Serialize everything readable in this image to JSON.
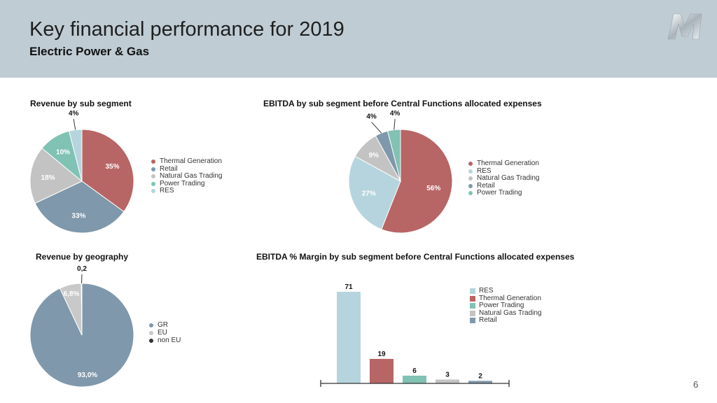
{
  "header": {
    "title": "Key financial performance for 2019",
    "subtitle": "Electric Power & Gas"
  },
  "page_number": "6",
  "colors": {
    "header_bg": "#bfccd4",
    "thermal": "#b86566",
    "retail": "#7f98ab",
    "natural_gas": "#c3c3c3",
    "power_trading": "#80c2b4",
    "res": "#b6d4dd",
    "gr": "#7f98ab",
    "eu": "#c9c9c9",
    "non_eu": "#333333"
  },
  "chart_data": [
    {
      "type": "pie",
      "title": "Revenue by sub segment",
      "labels": [
        "Thermal Generation",
        "Retail",
        "Natural Gas Trading",
        "Power Trading",
        "RES"
      ],
      "values": [
        35,
        33,
        18,
        10,
        4
      ],
      "value_labels": [
        "35%",
        "33%",
        "18%",
        "10%",
        "4%"
      ],
      "legend": [
        "Thermal Generation",
        "Retail",
        "Natural Gas Trading",
        "Power Trading",
        "RES"
      ],
      "legend_position": "right"
    },
    {
      "type": "pie",
      "title": "EBITDA by sub segment before Central Functions allocated expenses",
      "labels": [
        "Thermal Generation",
        "RES",
        "Natural Gas Trading",
        "Retail",
        "Power Trading"
      ],
      "values": [
        56,
        27,
        9,
        4,
        4
      ],
      "value_labels": [
        "56%",
        "27%",
        "9%",
        "4%",
        "4%"
      ],
      "legend": [
        "Thermal Generation",
        "RES",
        "Natural Gas Trading",
        "Retail",
        "Power Trading"
      ],
      "legend_position": "right"
    },
    {
      "type": "pie",
      "title": "Revenue by geography",
      "labels": [
        "GR",
        "EU",
        "non EU"
      ],
      "values": [
        93.0,
        6.8,
        0.2
      ],
      "value_labels": [
        "93,0%",
        "6,8%",
        "0,2"
      ],
      "legend": [
        "GR",
        "EU",
        "non EU"
      ],
      "legend_position": "right"
    },
    {
      "type": "bar",
      "title": "EBITDA % Margin by sub segment before Central Functions allocated expenses",
      "categories": [
        "RES",
        "Thermal Generation",
        "Power Trading",
        "Natural Gas Trading",
        "Retail"
      ],
      "values": [
        71,
        19,
        6,
        3,
        2
      ],
      "value_labels": [
        "71",
        "19",
        "6",
        "3",
        "2"
      ],
      "legend": [
        "RES",
        "Thermal Generation",
        "Power Trading",
        "Natural Gas Trading",
        "Retail"
      ],
      "legend_position": "right",
      "ylim": [
        0,
        71
      ]
    }
  ]
}
